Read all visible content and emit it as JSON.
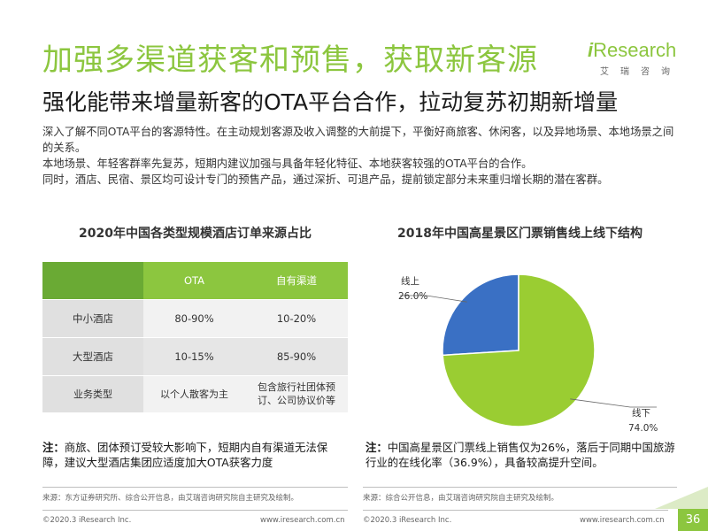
{
  "header": {
    "title": "加强多渠道获客和预售，获取新客源",
    "subtitle": "强化能带来增量新客的OTA平台合作，拉动复苏初期新增量"
  },
  "logo": {
    "brand_i": "i",
    "brand_rest": "Research",
    "chinese": "艾瑞咨询",
    "color": "#8cc63f"
  },
  "intro": [
    "深入了解不同OTA平台的客源特性。在主动规划客源及收入调整的大前提下，平衡好商旅客、休闲客，以及异地场景、本地场景之间的关系。",
    "本地场景、年轻客群率先复苏，短期内建议加强与具备年轻化特征、本地获客较强的OTA平台的合作。",
    "同时，酒店、民宿、景区均可设计专门的预售产品，通过深折、可退产品，提前锁定部分未来重归增长期的潜在客群。"
  ],
  "table_section": {
    "title": "2020年中国各类型规模酒店订单来源占比",
    "columns": [
      "",
      "OTA",
      "自有渠道"
    ],
    "rows": [
      {
        "label": "中小酒店",
        "ota": "80-90%",
        "own": "10-20%"
      },
      {
        "label": "大型酒店",
        "ota": "10-15%",
        "own": "85-90%"
      },
      {
        "label": "业务类型",
        "ota": "以个人散客为主",
        "own": "包含旅行社团体预订、公司协议价等"
      }
    ],
    "note_prefix": "注：",
    "note": "商旅、团体预订受较大影响下，短期内自有渠道无法保障，建议大型酒店集团应适度加大OTA获客力度",
    "source": "来源：东方证券研究所、综合公开信息，由艾瑞咨询研究院自主研究及绘制。"
  },
  "chart_section": {
    "note_prefix": "注：",
    "note": "中国高星景区门票线上销售仅为26%，落后于同期中国旅游行业的在线化率（36.9%），具备较高提升空间。",
    "source": "来源：综合公开信息，由艾瑞咨询研究院自主研究及绘制。"
  },
  "chart_data": {
    "type": "pie",
    "title": "2018年中国高星景区门票销售线上线下结构",
    "slices": [
      {
        "label": "线上",
        "value": 26.0,
        "display": "26.0%",
        "color": "#3a70c4"
      },
      {
        "label": "线下",
        "value": 74.0,
        "display": "74.0%",
        "color": "#9acd32"
      }
    ],
    "legend": "none",
    "labels": "outside-with-leader-lines"
  },
  "footer": {
    "copyright_left": "©2020.3 iResearch Inc.",
    "url_left": "www.iresearch.com.cn",
    "copyright_right": "©2020.3 iResearch Inc.",
    "url_right": "www.iresearch.com.cn",
    "page_number": "36"
  }
}
